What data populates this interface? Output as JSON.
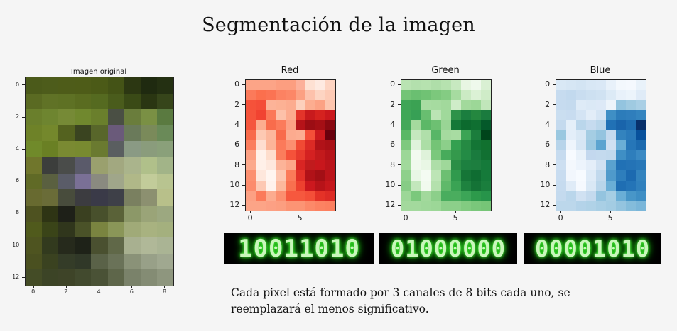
{
  "title": "Segmentación de la imagen",
  "caption": "Cada pixel está formado por 3 canales de 8 bits cada uno, se reemplazará el menos significativo.",
  "plots": {
    "original": {
      "title": "Imagen original",
      "yticks": [
        "0",
        "2",
        "4",
        "6",
        "8",
        "10",
        "12"
      ],
      "xticks": [
        "0",
        "2",
        "4",
        "6",
        "8"
      ]
    },
    "red": {
      "title": "Red",
      "yticks": [
        "0",
        "2",
        "4",
        "6",
        "8",
        "10",
        "12"
      ],
      "xticks": [
        "0",
        "5"
      ]
    },
    "green": {
      "title": "Green",
      "yticks": [
        "0",
        "2",
        "4",
        "6",
        "8",
        "10",
        "12"
      ],
      "xticks": [
        "0",
        "5"
      ]
    },
    "blue": {
      "title": "Blue",
      "yticks": [
        "0",
        "2",
        "4",
        "6",
        "8",
        "10",
        "12"
      ],
      "xticks": [
        "0",
        "5"
      ]
    }
  },
  "bits": {
    "red": "10011010",
    "green": "01000000",
    "blue": "00001010"
  },
  "colors": {
    "original": [
      [
        "#4b5a1a",
        "#4d5c1b",
        "#4e5c19",
        "#4e5c18",
        "#4b5a17",
        "#445316",
        "#2c3712",
        "#1f2a10",
        "#243012"
      ],
      [
        "#5a6a22",
        "#607226",
        "#5e7124",
        "#5a6c20",
        "#556a20",
        "#4a5c1c",
        "#3a4a16",
        "#2a3612",
        "#36451a"
      ],
      [
        "#6a7f2c",
        "#6e8530",
        "#768a36",
        "#70882e",
        "#6a7f2c",
        "#4a4f44",
        "#6a7d3c",
        "#7a9044",
        "#5a7a40"
      ],
      [
        "#6e8228",
        "#74882c",
        "#54621f",
        "#3a4420",
        "#58662a",
        "#6a5a7a",
        "#6a7a5a",
        "#7a8a5a",
        "#6a8a58"
      ],
      [
        "#708a2a",
        "#6a8024",
        "#7a8a32",
        "#788a30",
        "#6a7a30",
        "#5a5e60",
        "#8a9a84",
        "#8a9c7c",
        "#8aa07a"
      ],
      [
        "#70762c",
        "#3c3e3c",
        "#4a4c4a",
        "#5a5a6a",
        "#9aa06e",
        "#a2a880",
        "#aab48c",
        "#b0c08a",
        "#a2b488"
      ],
      [
        "#606a26",
        "#5a6040",
        "#5a5c68",
        "#7a7096",
        "#8a8a80",
        "#a0a68a",
        "#b0b888",
        "#c2cc9a",
        "#b8c490"
      ],
      [
        "#686a30",
        "#6a6c38",
        "#484c3c",
        "#3c3c40",
        "#3a3a48",
        "#3e4048",
        "#7a8060",
        "#8c9070",
        "#b8c08a"
      ],
      [
        "#4e5220",
        "#2e3414",
        "#1e2018",
        "#3a4020",
        "#48502c",
        "#5a6238",
        "#8c9868",
        "#9aa478",
        "#9ca880"
      ],
      [
        "#505a1c",
        "#3a4418",
        "#30361c",
        "#4a5228",
        "#7a8440",
        "#8a9658",
        "#a0aa78",
        "#a8b280",
        "#a4b07e"
      ],
      [
        "#4e5420",
        "#323a1e",
        "#262a1c",
        "#1e2218",
        "#4a5030",
        "#606848",
        "#a8b090",
        "#b0b898",
        "#aab494"
      ],
      [
        "#4a5020",
        "#3a4220",
        "#343c28",
        "#303828",
        "#5a6248",
        "#6a7258",
        "#8a9278",
        "#98a088",
        "#a0a890"
      ],
      [
        "#444c26",
        "#3c4426",
        "#3e4428",
        "#424a2e",
        "#4a5236",
        "#5e664a",
        "#7a826a",
        "#848c74",
        "#8e967e"
      ]
    ],
    "red": [
      [
        "#fca487",
        "#fca487",
        "#fca487",
        "#fc9e80",
        "#fc9e80",
        "#fcb09a",
        "#fee1d3",
        "#feeae1",
        "#fdd4c2"
      ],
      [
        "#fb7a5a",
        "#fb6f4d",
        "#fb7353",
        "#fc8262",
        "#fc8767",
        "#fca082",
        "#fdc1ab",
        "#fdd4c2",
        "#fdcab5"
      ],
      [
        "#f5523a",
        "#f44d38",
        "#fcb398",
        "#fcb194",
        "#fcac8f",
        "#fdd0bc",
        "#fcad90",
        "#fca284",
        "#fdc5ae"
      ],
      [
        "#f5533b",
        "#f14331",
        "#fb7858",
        "#fdc1a9",
        "#fcab8e",
        "#e3342a",
        "#c81a1d",
        "#d5221f",
        "#ca181d"
      ],
      [
        "#f5563d",
        "#fcad8f",
        "#f86c4c",
        "#fb7b5b",
        "#fca084",
        "#b61319",
        "#9c0d14",
        "#a50f15",
        "#8a0911"
      ],
      [
        "#f86a4a",
        "#fdc9b3",
        "#fcb79c",
        "#f86b4b",
        "#fcab8f",
        "#fcae92",
        "#f44f39",
        "#cc191e",
        "#69000d"
      ],
      [
        "#fb7d5d",
        "#feddd0",
        "#fcb498",
        "#fb7a5a",
        "#fc8f70",
        "#f14a34",
        "#dc2a25",
        "#b11218",
        "#a91016"
      ],
      [
        "#fca083",
        "#fff1ea",
        "#feddcc",
        "#fb7d5c",
        "#f5523a",
        "#e83a2d",
        "#d42121",
        "#c31a1c",
        "#b61319"
      ],
      [
        "#fca98c",
        "#fff0e8",
        "#fee8dd",
        "#fcb398",
        "#fca689",
        "#d92523",
        "#c11b1d",
        "#c8171c",
        "#bb141a"
      ],
      [
        "#fc9070",
        "#fee7dc",
        "#fff5f0",
        "#fdc6b0",
        "#fb7a59",
        "#e23028",
        "#b11218",
        "#a30f15",
        "#bb141a"
      ],
      [
        "#fc8b6c",
        "#fdc8b3",
        "#fff2ec",
        "#fcb89c",
        "#f8704f",
        "#ed412f",
        "#cc181e",
        "#b71319",
        "#c5171c"
      ],
      [
        "#fca083",
        "#fb7a5a",
        "#fcab8f",
        "#fc8f6f",
        "#f6583e",
        "#f6583e",
        "#f44f38",
        "#e43227",
        "#dd2b25"
      ],
      [
        "#fca487",
        "#fca487",
        "#fca084",
        "#fc9e80",
        "#fc9474",
        "#fc9474",
        "#fc8969",
        "#fc8262",
        "#fc7f5f"
      ]
    ],
    "green": [
      [
        "#b9e3b2",
        "#b3e0ad",
        "#b6e2af",
        "#afdea9",
        "#b6e2af",
        "#c7e9c0",
        "#e8f6e3",
        "#eff9ec",
        "#d9f0d3"
      ],
      [
        "#73c476",
        "#6abf71",
        "#70c274",
        "#7cc87c",
        "#84cc83",
        "#a6dba0",
        "#cbeac4",
        "#dbf1d5",
        "#cfecc8"
      ],
      [
        "#3ea556",
        "#3ba253",
        "#a8dca2",
        "#a6dba0",
        "#a2d99c",
        "#cfecc8",
        "#a2d99c",
        "#9cd797",
        "#c1e6ba"
      ],
      [
        "#3fa757",
        "#37a055",
        "#68be70",
        "#bbe4b4",
        "#a0d99b",
        "#2e9249",
        "#1b7e3f",
        "#24873f",
        "#1a7b3e"
      ],
      [
        "#43a85a",
        "#a4da9e",
        "#5cb867",
        "#6dc072",
        "#99d595",
        "#157838",
        "#0c6a2e",
        "#0f6f31",
        "#04592a"
      ],
      [
        "#5ab866",
        "#c5e8be",
        "#b0dfaa",
        "#58b667",
        "#a5da9f",
        "#a8dca2",
        "#3ba454",
        "#1b7d3c",
        "#00441b"
      ],
      [
        "#7ec97e",
        "#e0f3db",
        "#acdea6",
        "#74c476",
        "#8ccf8a",
        "#34a050",
        "#258a43",
        "#137535",
        "#11712f"
      ],
      [
        "#9cd797",
        "#f2faef",
        "#dff2da",
        "#7bc87c",
        "#47ab5b",
        "#34994c",
        "#238b45",
        "#1a7b3e",
        "#117032"
      ],
      [
        "#a1d99b",
        "#f0f9ed",
        "#e9f7e5",
        "#aedea8",
        "#9fd89a",
        "#2b8e46",
        "#1d8040",
        "#1d7e3f",
        "#157a3a"
      ],
      [
        "#8ed08b",
        "#e9f7e5",
        "#f4fbf2",
        "#bde5b6",
        "#6dbf72",
        "#309a4d",
        "#157537",
        "#0f6d32",
        "#157a3a"
      ],
      [
        "#86cc85",
        "#c3e7bc",
        "#f1faee",
        "#b4e1ad",
        "#5fb96a",
        "#3aa354",
        "#1e823f",
        "#147336",
        "#1a7e3d"
      ],
      [
        "#9cd797",
        "#7bc87c",
        "#a2d99c",
        "#8ccf8a",
        "#49ad5e",
        "#4aad5e",
        "#3ca557",
        "#2d9a4b",
        "#27944a"
      ],
      [
        "#a3d99d",
        "#a3d99d",
        "#9fd89a",
        "#9cd797",
        "#8ccf8a",
        "#8ccf8a",
        "#82cb81",
        "#7ac77b",
        "#76c577"
      ]
    ],
    "blue": [
      [
        "#d9e8f5",
        "#d6e6f4",
        "#d3e4f3",
        "#d8e7f5",
        "#dae8f6",
        "#e8f1fa",
        "#f3f8fd",
        "#f5f9fe",
        "#e9f2fa"
      ],
      [
        "#c6dbef",
        "#c2d9ee",
        "#c9ddf0",
        "#cde0f1",
        "#d0e2f2",
        "#dceaf6",
        "#e8f1fa",
        "#ecf4fb",
        "#dfebf7"
      ],
      [
        "#c6dbef",
        "#c4daee",
        "#deebf7",
        "#dbe9f6",
        "#dde9f7",
        "#edf4fb",
        "#93c4df",
        "#9fcae1",
        "#a9cfe5"
      ],
      [
        "#cadef0",
        "#c8dcf0",
        "#d4e4f4",
        "#e2edf8",
        "#d5e5f4",
        "#3f8fc5",
        "#2c7cba",
        "#2f7ebc",
        "#3484bf"
      ],
      [
        "#c4daee",
        "#e4eff9",
        "#bad6eb",
        "#c6dbef",
        "#bad6eb",
        "#2171b5",
        "#1964ab",
        "#1f6db1",
        "#08306b"
      ],
      [
        "#9ac8e0",
        "#e3eef9",
        "#d9e8f5",
        "#a5cde3",
        "#94c4df",
        "#c4daee",
        "#3383be",
        "#2a7aba",
        "#08519c"
      ],
      [
        "#b7d4ea",
        "#eef5fc",
        "#d6e6f4",
        "#9dc9e2",
        "#5ca4d0",
        "#d0e1f2",
        "#6aaed6",
        "#2676b8",
        "#1c6aaf"
      ],
      [
        "#c6dbef",
        "#f7fbff",
        "#e9f2fa",
        "#c3d8ee",
        "#c4daee",
        "#c1d9ed",
        "#3f8fc5",
        "#2e7ebc",
        "#3a89c3"
      ],
      [
        "#cddff1",
        "#f4f8fd",
        "#edf4fc",
        "#e4eef9",
        "#d0e1f2",
        "#5aa2cf",
        "#2171b5",
        "#2473b6",
        "#2777b8"
      ],
      [
        "#c8dcf0",
        "#f2f7fd",
        "#f7fbff",
        "#deebf7",
        "#c1d9ed",
        "#4f9acb",
        "#2e7ebc",
        "#1c6ab0",
        "#3383be"
      ],
      [
        "#c6dbef",
        "#dfebf7",
        "#f5f9fe",
        "#d9e8f5",
        "#b8d5ea",
        "#6aaed6",
        "#1f6eb3",
        "#2474b7",
        "#3080bd"
      ],
      [
        "#c4daee",
        "#bad6eb",
        "#d0e1f2",
        "#c4daee",
        "#94c4df",
        "#a6cee4",
        "#6aaed6",
        "#4896c8",
        "#3e8ec4"
      ],
      [
        "#bcd7eb",
        "#bcd7eb",
        "#b4d3e9",
        "#b0d2e7",
        "#a9cfe5",
        "#a3cce3",
        "#94c4df",
        "#84bcdb",
        "#7ab6d9"
      ]
    ]
  }
}
